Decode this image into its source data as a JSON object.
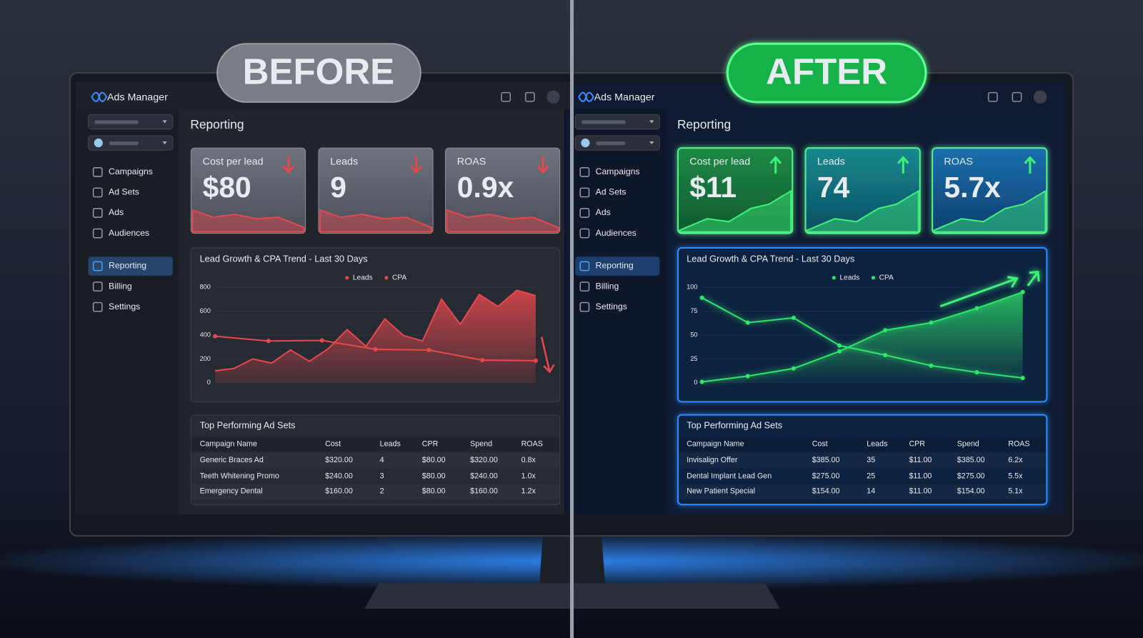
{
  "badges": {
    "before": "BEFORE",
    "after": "AFTER"
  },
  "panels": [
    {
      "app_title": "Ads Manager",
      "nav": [
        "Campaigns",
        "Ad Sets",
        "Ads",
        "Audiences",
        "Reporting",
        "Billing",
        "Settings"
      ],
      "section_title": "Reporting",
      "kpis": [
        {
          "label": "Cost per lead",
          "value": "$80"
        },
        {
          "label": "Leads",
          "value": "9"
        },
        {
          "label": "ROAS",
          "value": "0.9x"
        }
      ],
      "chart": {
        "type": "line",
        "title": "Lead Growth & CPA Trend - Last 30 Days",
        "ylim": [
          0,
          800
        ],
        "yticks": [
          0,
          200,
          400,
          600,
          800
        ],
        "series": [
          {
            "name": "Leads",
            "color": "#e5484d",
            "area": true,
            "markers": false,
            "values": [
              100,
              120,
              200,
              165,
              275,
              180,
              285,
              445,
              305,
              535,
              395,
              350,
              700,
              490,
              740,
              640,
              775,
              730
            ]
          },
          {
            "name": "CPA",
            "color": "#e5484d",
            "area": false,
            "markers": true,
            "values": [
              390,
              350,
              355,
              280,
              275,
              190,
              185
            ]
          }
        ]
      },
      "table": {
        "title": "Top Performing Ad Sets",
        "columns": [
          "Campaign Name",
          "Cost",
          "Leads",
          "CPR",
          "Spend",
          "ROAS"
        ],
        "rows": [
          [
            "Generic Braces Ad",
            "$320.00",
            "4",
            "$80.00",
            "$320.00",
            "0.8x"
          ],
          [
            "Teeth Whitening Promo",
            "$240.00",
            "3",
            "$80.00",
            "$240.00",
            "1.0x"
          ],
          [
            "Emergency Dental",
            "$160.00",
            "2",
            "$80.00",
            "$160.00",
            "1.2x"
          ]
        ]
      }
    },
    {
      "app_title": "Ads Manager",
      "nav": [
        "Campaigns",
        "Ad Sets",
        "Ads",
        "Audiences",
        "Reporting",
        "Billing",
        "Settings"
      ],
      "section_title": "Reporting",
      "kpis": [
        {
          "label": "Cost per lead",
          "value": "$11"
        },
        {
          "label": "Leads",
          "value": "74"
        },
        {
          "label": "ROAS",
          "value": "5.7x"
        }
      ],
      "chart": {
        "type": "line",
        "title": "Lead Growth & CPA Trend - Last 30 Days",
        "ylim": [
          0,
          100
        ],
        "yticks": [
          0,
          25,
          50,
          75,
          100
        ],
        "series": [
          {
            "name": "Leads",
            "color": "#2ee66b",
            "area": true,
            "markers": true,
            "values": [
              1,
              7,
              15,
              33,
              55,
              63,
              78,
              95
            ]
          },
          {
            "name": "CPA",
            "color": "#2ee66b",
            "area": false,
            "markers": true,
            "values": [
              89,
              63,
              68,
              39,
              29,
              18,
              11,
              5
            ]
          }
        ]
      },
      "table": {
        "title": "Top Performing Ad Sets",
        "columns": [
          "Campaign Name",
          "Cost",
          "Leads",
          "CPR",
          "Spend",
          "ROAS"
        ],
        "rows": [
          [
            "Invisalign Offer",
            "$385.00",
            "35",
            "$11.00",
            "$385.00",
            "6.2x"
          ],
          [
            "Dental Implant Lead Gen",
            "$275.00",
            "25",
            "$11.00",
            "$275.00",
            "5.5x"
          ],
          [
            "New Patient Special",
            "$154.00",
            "14",
            "$11.00",
            "$154.00",
            "5.1x"
          ]
        ]
      }
    }
  ]
}
